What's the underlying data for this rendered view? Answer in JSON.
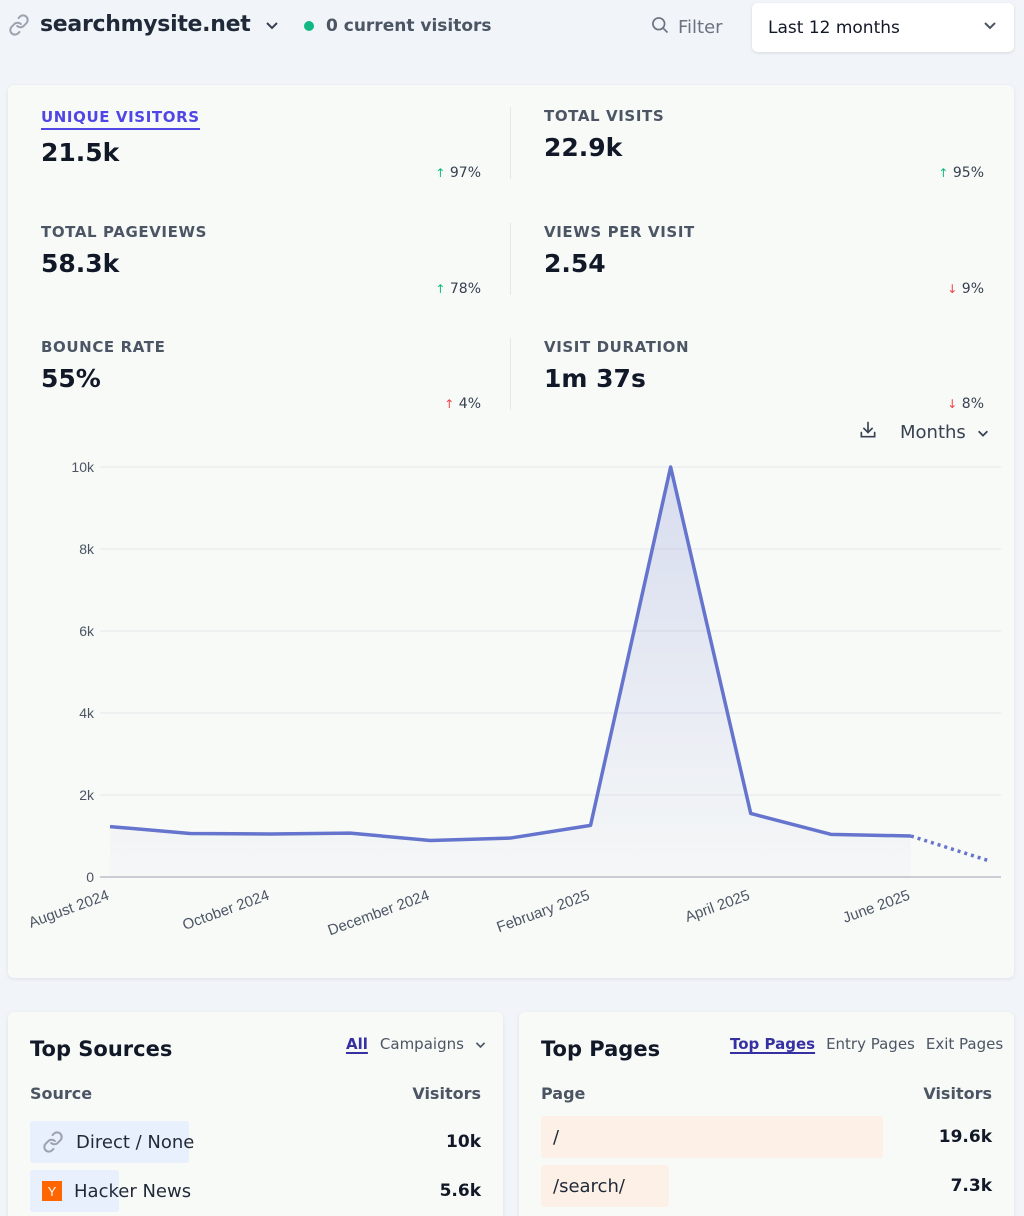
{
  "header": {
    "site_name": "searchmysite.net",
    "current_visitors": "0 current visitors",
    "filter_label": "Filter",
    "period_label": "Last 12 months"
  },
  "stats": [
    {
      "label": "UNIQUE VISITORS",
      "value": "21.5k",
      "change": "97%",
      "direction": "up",
      "active": true
    },
    {
      "label": "TOTAL VISITS",
      "value": "22.9k",
      "change": "95%",
      "direction": "up"
    },
    {
      "label": "TOTAL PAGEVIEWS",
      "value": "58.3k",
      "change": "78%",
      "direction": "up"
    },
    {
      "label": "VIEWS PER VISIT",
      "value": "2.54",
      "change": "9%",
      "direction": "down"
    },
    {
      "label": "BOUNCE RATE",
      "value": "55%",
      "change": "4%",
      "direction": "up"
    },
    {
      "label": "VISIT DURATION",
      "value": "1m 37s",
      "change": "8%",
      "direction": "down"
    }
  ],
  "chart_controls": {
    "interval_label": "Months"
  },
  "chart_data": {
    "type": "area",
    "categories": [
      "August 2024",
      "September 2024",
      "October 2024",
      "November 2024",
      "December 2024",
      "January 2025",
      "February 2025",
      "March 2025",
      "April 2025",
      "May 2025",
      "June 2025",
      "July 2025"
    ],
    "x_tick_labels": [
      "August 2024",
      "October 2024",
      "December 2024",
      "February 2025",
      "April 2025",
      "June 2025"
    ],
    "values": [
      1230,
      1060,
      1050,
      1070,
      890,
      950,
      1260,
      10000,
      1550,
      1040,
      1000,
      380
    ],
    "incomplete_last_point": true,
    "yticks": [
      "0",
      "2k",
      "4k",
      "6k",
      "8k",
      "10k"
    ],
    "ylim": [
      0,
      10000
    ],
    "grid": true,
    "line_color": "#6574cd",
    "fill_color": "#6574cd"
  },
  "top_sources": {
    "title": "Top Sources",
    "tabs": [
      "All",
      "Campaigns"
    ],
    "col_source": "Source",
    "col_visitors": "Visitors",
    "rows": [
      {
        "label": "Direct / None",
        "value": "10k",
        "fraction": 0.464,
        "icon": "link-icon"
      },
      {
        "label": "Hacker News",
        "value": "5.6k",
        "fraction": 0.26,
        "icon": "hacker-news-icon"
      }
    ],
    "bar_color": "#e8effd"
  },
  "top_pages": {
    "title": "Top Pages",
    "tabs": [
      "Top Pages",
      "Entry Pages",
      "Exit Pages"
    ],
    "col_page": "Page",
    "col_visitors": "Visitors",
    "rows": [
      {
        "label": "/",
        "value": "19.6k",
        "fraction": 1.0
      },
      {
        "label": "/search/",
        "value": "7.3k",
        "fraction": 0.373
      }
    ],
    "bar_color": "#fdf1e7"
  }
}
